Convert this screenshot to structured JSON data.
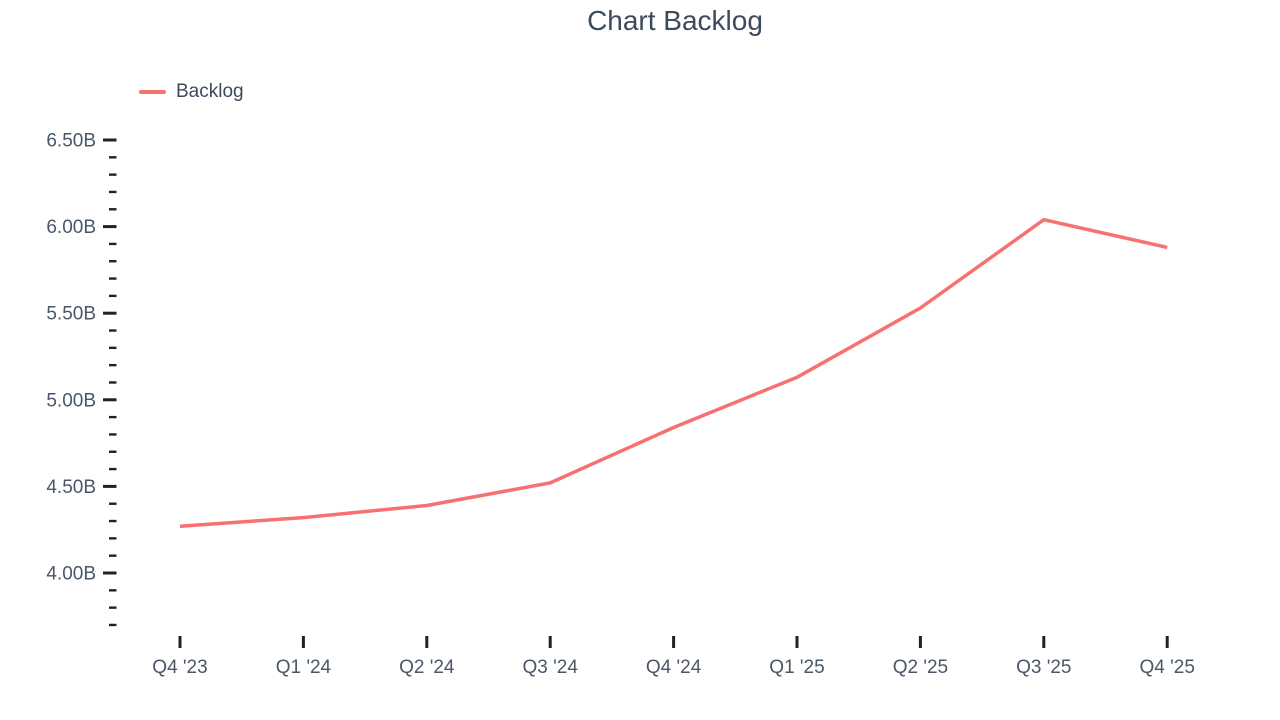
{
  "title": "Chart Backlog",
  "colors": {
    "line": "#f87171",
    "title_text": "#3d4a5c",
    "axis_label_text": "#4a5768",
    "tick_mark": "#222222",
    "background": "#ffffff"
  },
  "legend": {
    "items": [
      {
        "label": "Backlog",
        "color": "#f87171"
      }
    ]
  },
  "chart_data": {
    "type": "line",
    "title": "Chart Backlog",
    "categories": [
      "Q4 '23",
      "Q1 '24",
      "Q2 '24",
      "Q3 '24",
      "Q4 '24",
      "Q1 '25",
      "Q2 '25",
      "Q3 '25",
      "Q4 '25"
    ],
    "series": [
      {
        "name": "Backlog",
        "color": "#f87171",
        "values": [
          4.27,
          4.32,
          4.39,
          4.52,
          4.84,
          5.13,
          5.53,
          6.04,
          5.88
        ]
      }
    ],
    "unit": "B",
    "xlabel": "",
    "ylabel": "",
    "ylim": [
      3.7,
      6.5
    ],
    "yticks_major": {
      "min": 4.0,
      "max": 6.5,
      "step": 0.5,
      "suffix": "B",
      "decimals": 2
    },
    "yticks_minor": {
      "min": 3.7,
      "max": 6.5,
      "step": 0.1
    },
    "ytick_labels": [
      "4.00B",
      "4.50B",
      "5.00B",
      "5.50B",
      "6.00B",
      "6.50B"
    ],
    "grid": false,
    "legend_position": "top-left"
  }
}
